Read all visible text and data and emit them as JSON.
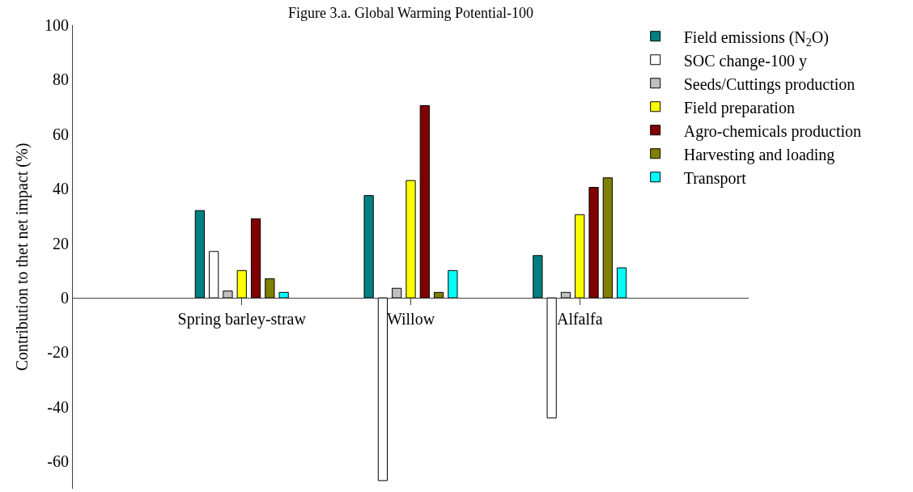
{
  "chart_data": {
    "type": "bar",
    "title": "Figure 3.a. Global Warming Potential-100",
    "ylabel": "Contribution to thet net impact (%)",
    "categories": [
      "Spring barley-straw",
      "Willow",
      "Alfalfa"
    ],
    "series": [
      {
        "name": "Field emissions (N$_{2}$O)",
        "color": "#008080",
        "values": [
          32,
          37.5,
          15.5
        ]
      },
      {
        "name": "SOC change-100 y",
        "color": "#ffffff",
        "values": [
          17,
          -67,
          -44
        ]
      },
      {
        "name": "Seeds/Cuttings production",
        "color": "#c0c0c0",
        "values": [
          2.5,
          3.5,
          2
        ]
      },
      {
        "name": "Field preparation",
        "color": "#ffff00",
        "values": [
          10,
          43,
          30.5
        ]
      },
      {
        "name": "Agro-chemicals production",
        "color": "#800000",
        "values": [
          29,
          70.5,
          40.5
        ]
      },
      {
        "name": "Harvesting and loading",
        "color": "#808000",
        "values": [
          7,
          2,
          44
        ]
      },
      {
        "name": "Transport",
        "color": "#00ffff",
        "values": [
          2,
          10,
          11
        ]
      }
    ],
    "ylim": [
      -70,
      100
    ],
    "yticks": [
      -60,
      -40,
      -20,
      0,
      20,
      40,
      60,
      80,
      100
    ],
    "legend": "top right"
  }
}
